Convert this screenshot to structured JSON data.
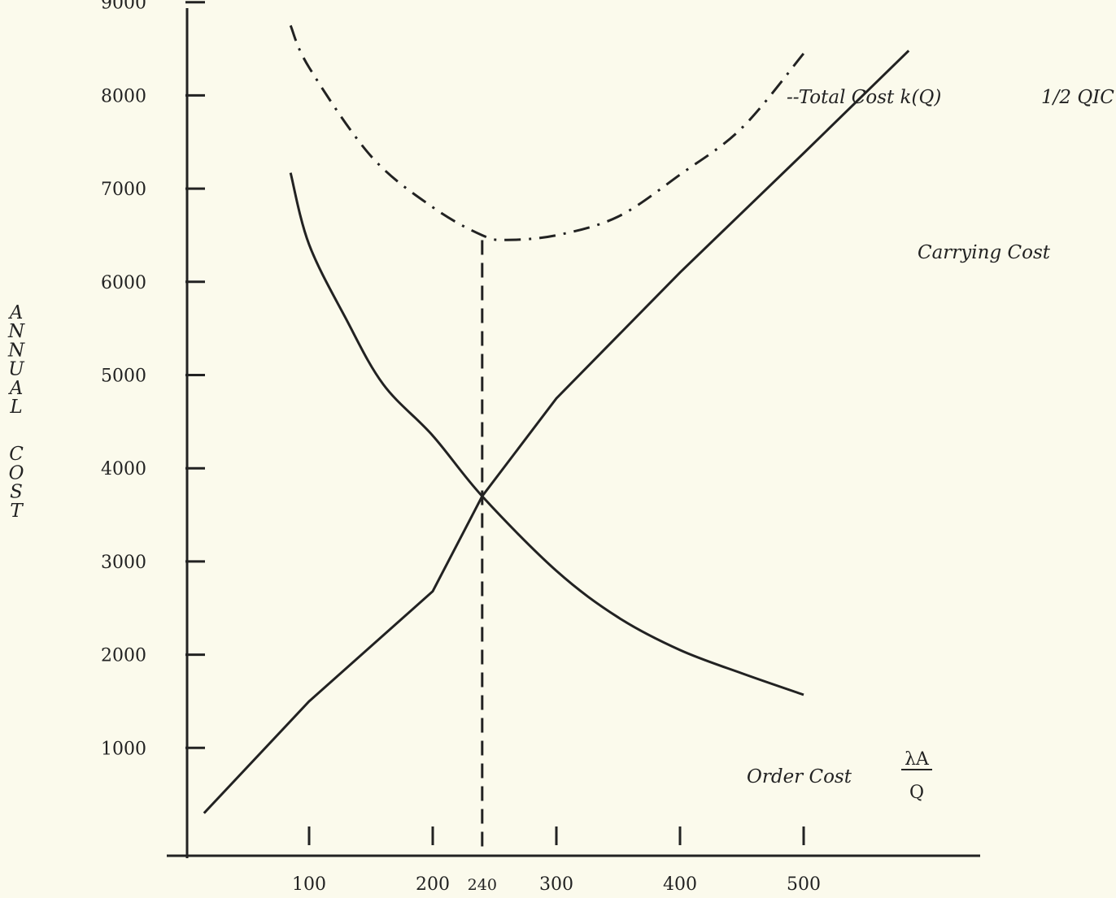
{
  "chart_data": {
    "type": "line",
    "title": "",
    "ylabel": "ANNUAL COST",
    "xlabel": "",
    "x_ticks": [
      100,
      200,
      240,
      300,
      400,
      500
    ],
    "y_ticks": [
      1000,
      2000,
      3000,
      4000,
      5000,
      6000,
      7000,
      8000,
      9000
    ],
    "optimal_q": 240,
    "series": [
      {
        "name": "Carrying Cost",
        "label_formula": "1/2 QIC",
        "style": "solid",
        "x": [
          15,
          100,
          200,
          240,
          300,
          400,
          500,
          585
        ],
        "y": [
          300,
          1500,
          2680,
          3700,
          4750,
          6100,
          7380,
          8480
        ]
      },
      {
        "name": "Order Cost",
        "label_formula_num": "λA",
        "label_formula_den": "Q",
        "style": "solid",
        "x": [
          85,
          100,
          130,
          160,
          200,
          240,
          300,
          350,
          400,
          450,
          500
        ],
        "y": [
          7170,
          6400,
          5600,
          4900,
          4350,
          3700,
          2900,
          2400,
          2050,
          1800,
          1570
        ]
      },
      {
        "name": "Total Cost k(Q)",
        "label_prefix": "--",
        "style": "dash-dot",
        "x": [
          85,
          100,
          150,
          200,
          240,
          260,
          300,
          350,
          400,
          450,
          500
        ],
        "y": [
          8750,
          8300,
          7350,
          6800,
          6500,
          6450,
          6500,
          6700,
          7150,
          7650,
          8450
        ]
      }
    ]
  }
}
